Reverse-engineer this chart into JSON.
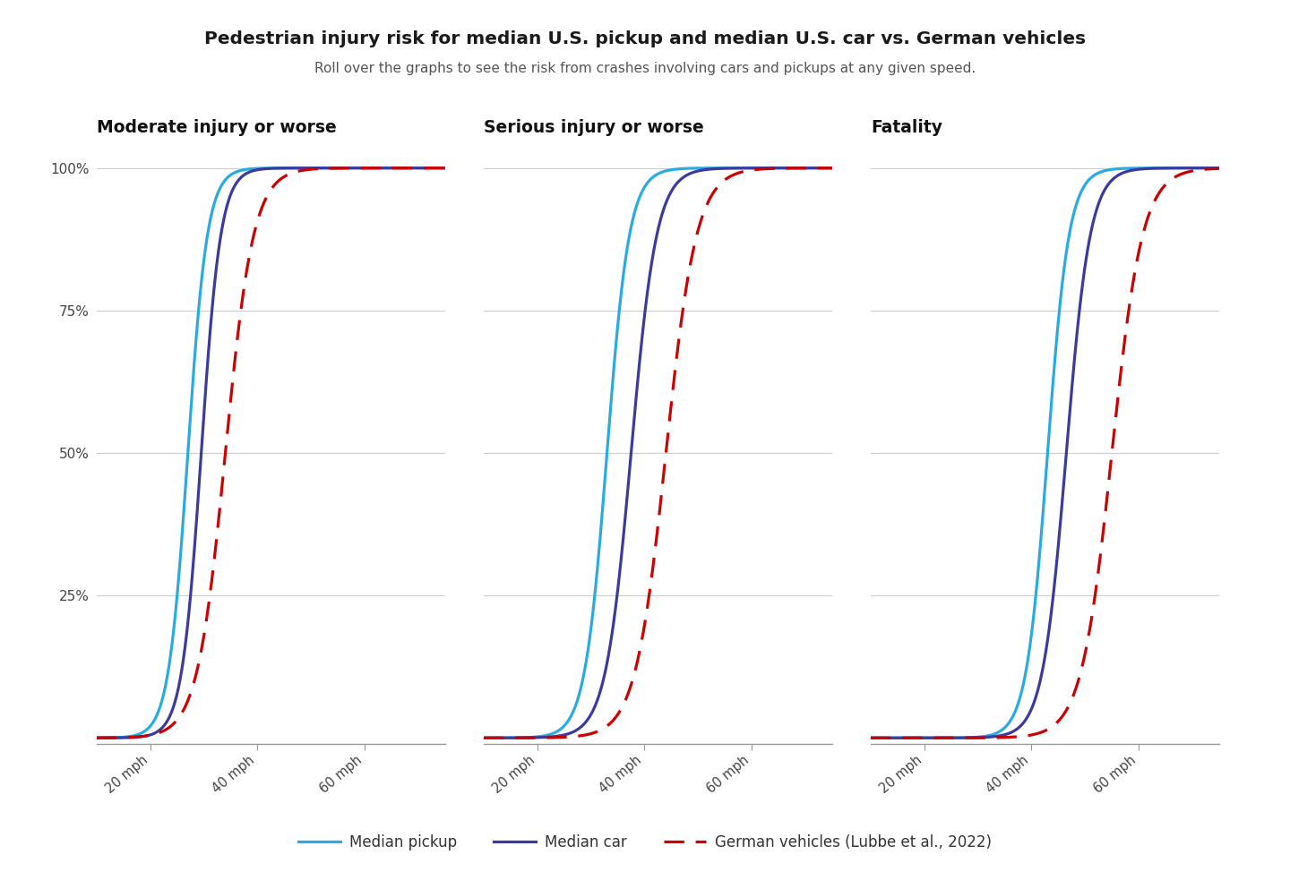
{
  "title": "Pedestrian injury risk for median U.S. pickup and median U.S. car vs. German vehicles",
  "subtitle": "Roll over the graphs to see the risk from crashes involving cars and pickups at any given speed.",
  "panel_titles": [
    "Moderate injury or worse",
    "Serious injury or worse",
    "Fatality"
  ],
  "ytick_positions": [
    0,
    25,
    50,
    75,
    100
  ],
  "ytick_labels": [
    "",
    "25%",
    "50%",
    "75%",
    "100%"
  ],
  "xtick_positions": [
    20,
    40,
    60
  ],
  "xtick_labels": [
    "20 mph",
    "40 mph",
    "60 mph"
  ],
  "color_pickup": "#29ABE2",
  "color_car": "#3B3B9E",
  "color_german": "#CC0000",
  "background_color": "#FFFFFF",
  "legend_labels": [
    "Median pickup",
    "Median car",
    "German vehicles (Lubbe et al., 2022)"
  ],
  "curves": {
    "moderate": {
      "pickup": {
        "mu": 27.0,
        "k": 0.55
      },
      "car": {
        "mu": 29.5,
        "k": 0.55
      },
      "german": {
        "mu": 34.0,
        "k": 0.38
      }
    },
    "serious": {
      "pickup": {
        "mu": 33.0,
        "k": 0.48
      },
      "car": {
        "mu": 37.5,
        "k": 0.42
      },
      "german": {
        "mu": 44.0,
        "k": 0.35
      }
    },
    "fatality": {
      "pickup": {
        "mu": 43.0,
        "k": 0.5
      },
      "car": {
        "mu": 46.5,
        "k": 0.45
      },
      "german": {
        "mu": 55.0,
        "k": 0.35
      }
    }
  },
  "x_min": 10,
  "x_max": 75,
  "y_min": -1,
  "y_max": 104
}
